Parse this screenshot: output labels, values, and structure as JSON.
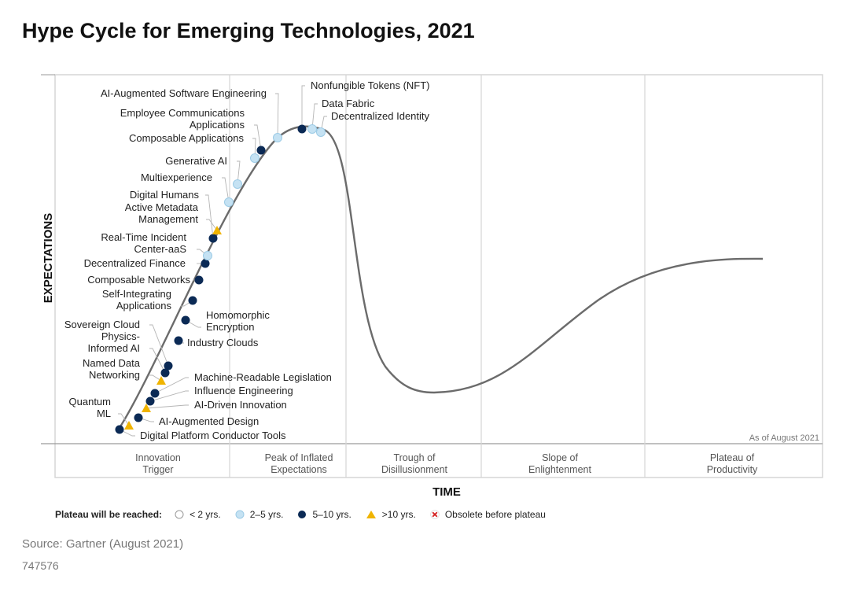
{
  "title": "Hype Cycle for Emerging Technologies, 2021",
  "y_axis_title": "EXPECTATIONS",
  "x_axis_title": "TIME",
  "date_note": "As of August 2021",
  "phases": [
    {
      "id": "innovation-trigger",
      "lines": [
        "Innovation",
        "Trigger"
      ]
    },
    {
      "id": "peak",
      "lines": [
        "Peak of Inflated",
        "Expectations"
      ]
    },
    {
      "id": "trough",
      "lines": [
        "Trough of",
        "Disillusionment"
      ]
    },
    {
      "id": "slope",
      "lines": [
        "Slope of",
        "Enlightenment"
      ]
    },
    {
      "id": "plateau",
      "lines": [
        "Plateau of",
        "Productivity"
      ]
    }
  ],
  "legend": {
    "title": "Plateau will be reached:",
    "items": [
      {
        "key": "lt2",
        "label": "< 2 yrs."
      },
      {
        "key": "2to5",
        "label": "2–5 yrs."
      },
      {
        "key": "5to10",
        "label": "5–10 yrs."
      },
      {
        "key": "gt10",
        "label": ">10 yrs."
      },
      {
        "key": "obsolete",
        "label": "Obsolete before plateau"
      }
    ]
  },
  "colors": {
    "curve": "#6b6b6b",
    "lt2": "#ffffff",
    "2to5": "#c5e2f3",
    "5to10": "#0b2a55",
    "gt10": "#f0b400",
    "obsolete": "#d42020",
    "grid": "#d6d6d6"
  },
  "technologies": [
    {
      "name": [
        "Digital Platform Conductor Tools"
      ],
      "plateau": "5to10",
      "stage": "innovation-trigger"
    },
    {
      "name": [
        "Quantum",
        "ML"
      ],
      "plateau": "gt10",
      "stage": "innovation-trigger"
    },
    {
      "name": [
        "AI-Augmented Design"
      ],
      "plateau": "5to10",
      "stage": "innovation-trigger"
    },
    {
      "name": [
        "AI-Driven Innovation"
      ],
      "plateau": "gt10",
      "stage": "innovation-trigger"
    },
    {
      "name": [
        "Influence Engineering"
      ],
      "plateau": "5to10",
      "stage": "innovation-trigger"
    },
    {
      "name": [
        "Machine-Readable Legislation"
      ],
      "plateau": "5to10",
      "stage": "innovation-trigger"
    },
    {
      "name": [
        "Named Data",
        "Networking"
      ],
      "plateau": "gt10",
      "stage": "innovation-trigger"
    },
    {
      "name": [
        "Physics-",
        "Informed AI"
      ],
      "plateau": "5to10",
      "stage": "innovation-trigger"
    },
    {
      "name": [
        "Sovereign Cloud"
      ],
      "plateau": "5to10",
      "stage": "innovation-trigger"
    },
    {
      "name": [
        "Industry Clouds"
      ],
      "plateau": "5to10",
      "stage": "innovation-trigger"
    },
    {
      "name": [
        "Homomorphic",
        "Encryption"
      ],
      "plateau": "5to10",
      "stage": "innovation-trigger"
    },
    {
      "name": [
        "Self-Integrating",
        "Applications"
      ],
      "plateau": "5to10",
      "stage": "innovation-trigger"
    },
    {
      "name": [
        "Composable Networks"
      ],
      "plateau": "5to10",
      "stage": "innovation-trigger"
    },
    {
      "name": [
        "Decentralized Finance"
      ],
      "plateau": "5to10",
      "stage": "innovation-trigger"
    },
    {
      "name": [
        "Real-Time Incident",
        "Center-aaS"
      ],
      "plateau": "2to5",
      "stage": "innovation-trigger"
    },
    {
      "name": [
        "Digital Humans"
      ],
      "plateau": "5to10",
      "stage": "innovation-trigger"
    },
    {
      "name": [
        "Active Metadata",
        "Management"
      ],
      "plateau": "gt10",
      "stage": "innovation-trigger"
    },
    {
      "name": [
        "Multiexperience"
      ],
      "plateau": "2to5",
      "stage": "innovation-trigger"
    },
    {
      "name": [
        "Generative AI"
      ],
      "plateau": "2to5",
      "stage": "innovation-trigger"
    },
    {
      "name": [
        "Composable Applications"
      ],
      "plateau": "2to5",
      "stage": "innovation-trigger"
    },
    {
      "name": [
        "Employee Communications",
        "Applications"
      ],
      "plateau": "5to10",
      "stage": "peak"
    },
    {
      "name": [
        "AI-Augmented Software Engineering"
      ],
      "plateau": "2to5",
      "stage": "peak"
    },
    {
      "name": [
        "Nonfungible Tokens (NFT)"
      ],
      "plateau": "5to10",
      "stage": "peak"
    },
    {
      "name": [
        "Data Fabric"
      ],
      "plateau": "2to5",
      "stage": "peak"
    },
    {
      "name": [
        "Decentralized Identity"
      ],
      "plateau": "2to5",
      "stage": "peak"
    }
  ],
  "source": "Source: Gartner (August 2021)",
  "doc_id": "747576"
}
